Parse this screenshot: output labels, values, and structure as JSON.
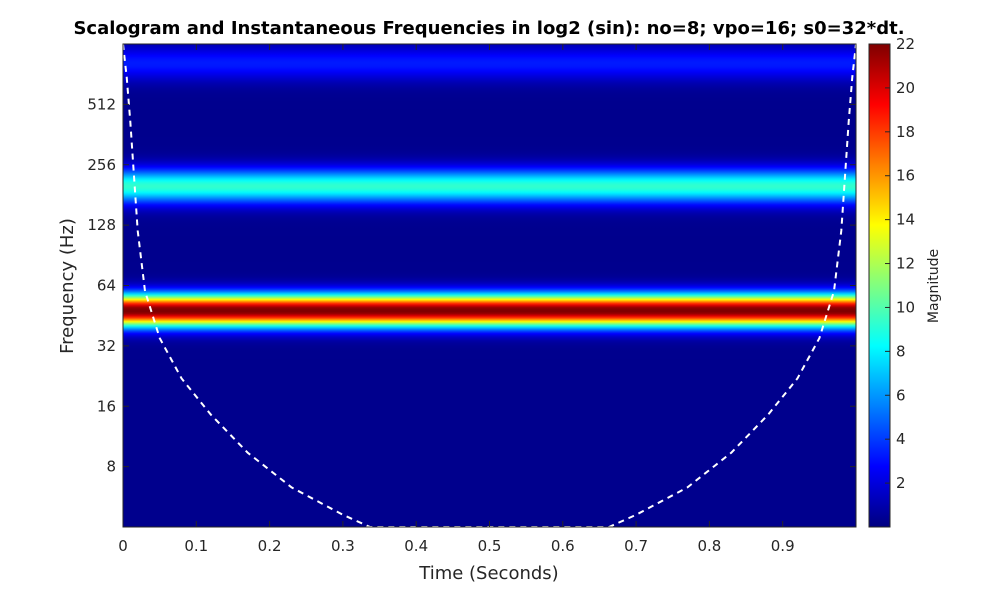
{
  "chart_data": {
    "type": "heatmap",
    "title": "Scalogram and Instantaneous Frequencies in log2 (sin): no=8; vpo=16; s0=32*dt.",
    "xlabel": "Time (Seconds)",
    "ylabel": "Frequency (Hz)",
    "xlim": [
      0,
      1
    ],
    "x_ticks": [
      0,
      0.1,
      0.2,
      0.3,
      0.4,
      0.5,
      0.6,
      0.7,
      0.8,
      0.9
    ],
    "x_tick_labels": [
      "0",
      "0.1",
      "0.2",
      "0.3",
      "0.4",
      "0.5",
      "0.6",
      "0.7",
      "0.8",
      "0.9"
    ],
    "y_scale": "log2",
    "ylim": [
      4,
      1024
    ],
    "y_ticks": [
      8,
      16,
      32,
      64,
      128,
      256,
      512
    ],
    "y_tick_labels": [
      "8",
      "16",
      "32",
      "64",
      "128",
      "256",
      "512"
    ],
    "colormap": "jet",
    "colorbar": {
      "label": "Magnitude",
      "clim": [
        0,
        22
      ],
      "ticks": [
        2,
        4,
        6,
        8,
        10,
        12,
        14,
        16,
        18,
        20,
        22
      ],
      "tick_labels": [
        "2",
        "4",
        "6",
        "8",
        "10",
        "12",
        "14",
        "16",
        "18",
        "20",
        "22"
      ]
    },
    "background_magnitude": 0.3,
    "bands": [
      {
        "center_hz": 48,
        "log2_halfwidth": 0.26,
        "peak_magnitude": 22
      },
      {
        "center_hz": 200,
        "log2_halfwidth": 0.28,
        "peak_magnitude": 9
      },
      {
        "center_hz": 820,
        "log2_halfwidth": 0.28,
        "peak_magnitude": 3
      }
    ],
    "cone_of_influence": {
      "style": "white dashed",
      "t": [
        0.0,
        0.005,
        0.01,
        0.02,
        0.03,
        0.05,
        0.08,
        0.12,
        0.17,
        0.23,
        0.3,
        0.337,
        0.663,
        0.7,
        0.77,
        0.83,
        0.88,
        0.92,
        0.95,
        0.97,
        0.98,
        0.99,
        0.995,
        1.0
      ],
      "f_hz": [
        1024,
        700,
        420,
        120,
        60,
        35,
        22,
        14.5,
        9.4,
        6.3,
        4.6,
        4.0,
        4.0,
        4.6,
        6.3,
        9.4,
        14.5,
        22,
        35,
        60,
        120,
        420,
        700,
        1024
      ]
    }
  }
}
